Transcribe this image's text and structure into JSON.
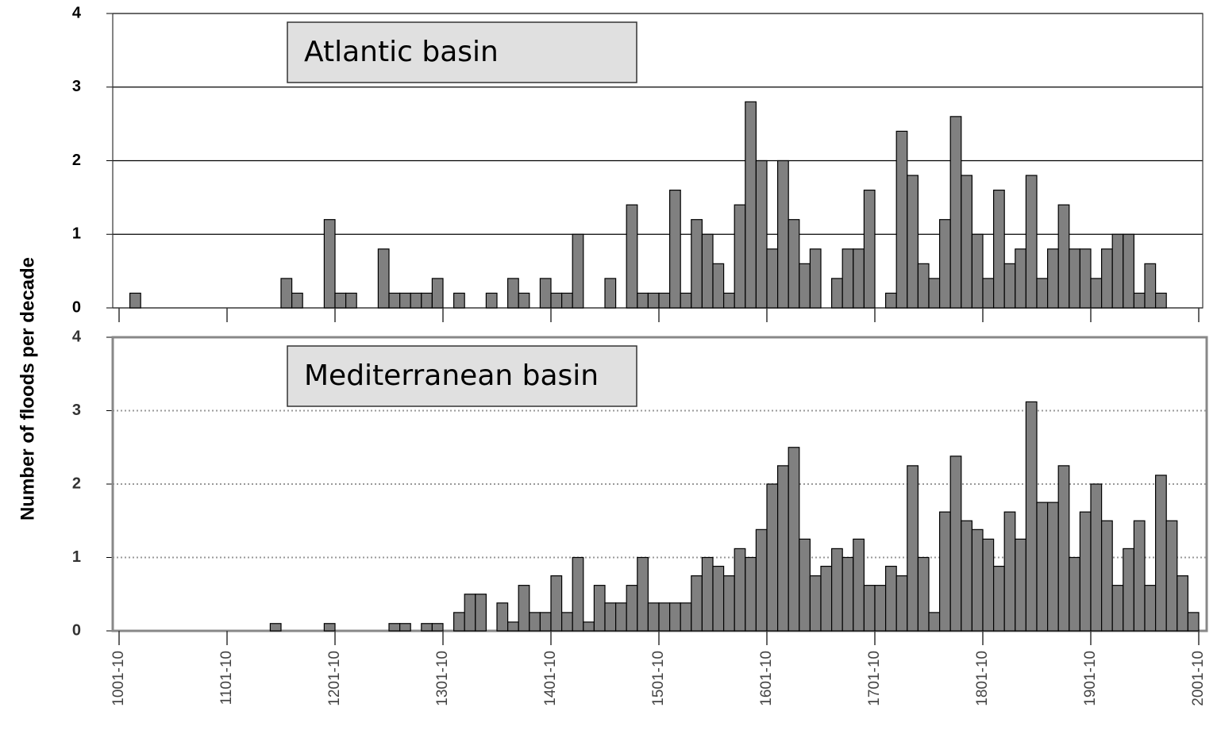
{
  "chart_data": [
    {
      "type": "bar",
      "title": "Atlantic basin",
      "ylabel": "Number of floods per decade",
      "color": "#808080",
      "grid": true,
      "grid_style": "solid",
      "ylim": [
        0,
        4
      ],
      "yticks": [
        0,
        1,
        2,
        3,
        4
      ],
      "xlim": [
        1001,
        2001
      ],
      "x": [
        1011,
        1151,
        1161,
        1191,
        1201,
        1211,
        1241,
        1251,
        1261,
        1271,
        1281,
        1291,
        1311,
        1341,
        1361,
        1371,
        1391,
        1401,
        1411,
        1421,
        1451,
        1471,
        1481,
        1491,
        1501,
        1511,
        1521,
        1531,
        1541,
        1551,
        1561,
        1571,
        1581,
        1591,
        1601,
        1611,
        1621,
        1631,
        1641,
        1661,
        1671,
        1681,
        1691,
        1711,
        1721,
        1731,
        1741,
        1751,
        1761,
        1771,
        1781,
        1791,
        1801,
        1811,
        1821,
        1831,
        1841,
        1851,
        1861,
        1871,
        1881,
        1891,
        1901,
        1911,
        1921,
        1931,
        1941,
        1951,
        1961
      ],
      "values": [
        0.2,
        0.4,
        0.2,
        1.2,
        0.2,
        0.2,
        0.8,
        0.2,
        0.2,
        0.2,
        0.2,
        0.4,
        0.2,
        0.2,
        0.4,
        0.2,
        0.4,
        0.2,
        0.2,
        1.0,
        0.4,
        1.4,
        0.2,
        0.2,
        0.2,
        1.6,
        0.2,
        1.2,
        1.0,
        0.6,
        0.2,
        1.4,
        2.8,
        2.0,
        0.8,
        2.0,
        1.2,
        0.6,
        0.8,
        0.4,
        0.8,
        0.8,
        1.6,
        0.2,
        2.4,
        1.8,
        0.6,
        0.4,
        1.2,
        2.6,
        1.8,
        1.0,
        0.4,
        1.6,
        0.6,
        0.8,
        1.8,
        0.4,
        0.8,
        1.4,
        0.8,
        0.8,
        0.4,
        0.8,
        1.0,
        1.0,
        0.2,
        0.6,
        0.2
      ]
    },
    {
      "type": "bar",
      "title": "Mediterranean basin",
      "color": "#808080",
      "grid": true,
      "grid_style": "dotted",
      "ylim": [
        0,
        4
      ],
      "yticks": [
        0,
        1,
        2,
        3,
        4
      ],
      "xlim": [
        1001,
        2001
      ],
      "xticks": [
        {
          "value": 1001,
          "label": "1001-10"
        },
        {
          "value": 1101,
          "label": "1101-10"
        },
        {
          "value": 1201,
          "label": "1201-10"
        },
        {
          "value": 1301,
          "label": "1301-10"
        },
        {
          "value": 1401,
          "label": "1401-10"
        },
        {
          "value": 1501,
          "label": "1501-10"
        },
        {
          "value": 1601,
          "label": "1601-10"
        },
        {
          "value": 1701,
          "label": "1701-10"
        },
        {
          "value": 1801,
          "label": "1801-10"
        },
        {
          "value": 1901,
          "label": "1901-10"
        },
        {
          "value": 2001,
          "label": "2001-10"
        }
      ],
      "x": [
        1141,
        1191,
        1251,
        1261,
        1281,
        1291,
        1311,
        1321,
        1331,
        1351,
        1361,
        1371,
        1381,
        1391,
        1401,
        1411,
        1421,
        1431,
        1441,
        1451,
        1461,
        1471,
        1481,
        1491,
        1501,
        1511,
        1521,
        1531,
        1541,
        1551,
        1561,
        1571,
        1581,
        1591,
        1601,
        1611,
        1621,
        1631,
        1641,
        1651,
        1661,
        1671,
        1681,
        1691,
        1701,
        1711,
        1721,
        1731,
        1741,
        1751,
        1761,
        1771,
        1781,
        1791,
        1801,
        1811,
        1821,
        1831,
        1841,
        1851,
        1861,
        1871,
        1881,
        1891,
        1901,
        1911,
        1921,
        1931,
        1941,
        1951,
        1961,
        1971,
        1981,
        1991
      ],
      "values": [
        0.1,
        0.1,
        0.1,
        0.1,
        0.1,
        0.1,
        0.25,
        0.5,
        0.5,
        0.38,
        0.12,
        0.62,
        0.25,
        0.25,
        0.75,
        0.25,
        1.0,
        0.12,
        0.62,
        0.38,
        0.38,
        0.62,
        1.0,
        0.38,
        0.38,
        0.38,
        0.38,
        0.75,
        1.0,
        0.88,
        0.75,
        1.12,
        1.0,
        1.38,
        2.0,
        2.25,
        2.5,
        1.25,
        0.75,
        0.88,
        1.12,
        1.0,
        1.25,
        0.62,
        0.62,
        0.88,
        0.75,
        2.25,
        1.0,
        0.25,
        1.62,
        2.38,
        1.5,
        1.38,
        1.25,
        0.88,
        1.62,
        1.25,
        3.12,
        1.75,
        1.75,
        2.25,
        1.0,
        1.62,
        2.0,
        1.5,
        0.62,
        1.12,
        1.5,
        0.62,
        2.12,
        1.5,
        0.75,
        0.25
      ]
    }
  ]
}
